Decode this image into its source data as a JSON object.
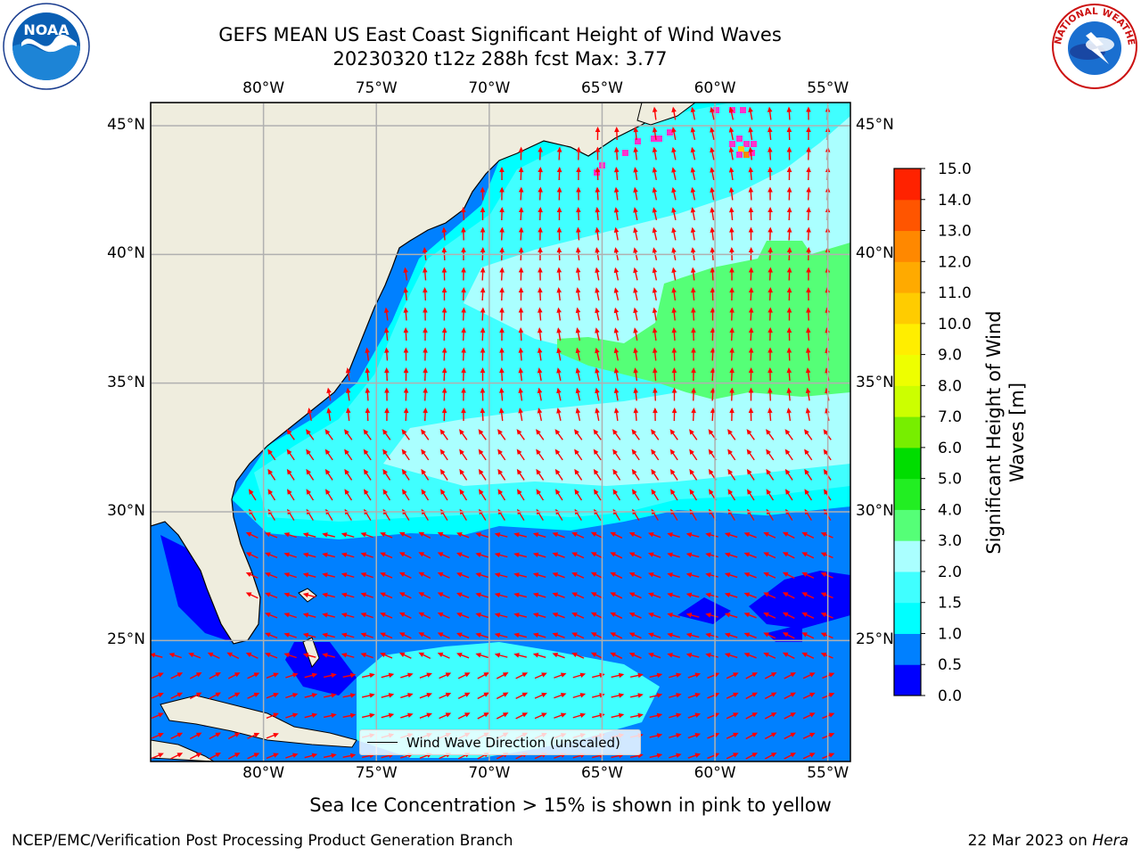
{
  "header": {
    "title_line1": "GEFS MEAN US East Coast Significant Height of Wind Waves",
    "title_line2": "20230320 t12z 288h fcst   Max: 3.77"
  },
  "logos": {
    "left": {
      "name": "noaa-logo",
      "text": "NOAA"
    },
    "right": {
      "name": "national-weather-service-logo",
      "text": "NATIONAL WEATHER SERVICE"
    }
  },
  "map": {
    "extent_lon": [
      -85,
      -54
    ],
    "extent_lat": [
      20.3,
      45.9
    ],
    "lon_ticks": [
      {
        "value": -80,
        "label": "80°W"
      },
      {
        "value": -75,
        "label": "75°W"
      },
      {
        "value": -70,
        "label": "70°W"
      },
      {
        "value": -65,
        "label": "65°W"
      },
      {
        "value": -60,
        "label": "60°W"
      },
      {
        "value": -55,
        "label": "55°W"
      }
    ],
    "lat_ticks": [
      {
        "value": 45,
        "label": "45°N"
      },
      {
        "value": 40,
        "label": "40°N"
      },
      {
        "value": 35,
        "label": "35°N"
      },
      {
        "value": 30,
        "label": "30°N"
      },
      {
        "value": 25,
        "label": "25°N"
      }
    ],
    "colors": {
      "land": "#efedde",
      "arrow": "#ff0000",
      "grid": "#b0b0b0",
      "coast": "#000000"
    },
    "legend": {
      "label": "Wind Wave Direction (unscaled)"
    }
  },
  "colorbar": {
    "label_line1": "Significant Height of Wind",
    "label_line2": "Waves [m]",
    "levels": [
      "0.0",
      "0.5",
      "1.0",
      "1.5",
      "2.0",
      "3.0",
      "4.0",
      "5.0",
      "6.0",
      "7.0",
      "8.0",
      "9.0",
      "10.0",
      "11.0",
      "12.0",
      "13.0",
      "14.0",
      "15.0"
    ],
    "colors": [
      "#0000ff",
      "#0080ff",
      "#00ffff",
      "#40ffff",
      "#aaffff",
      "#55ff77",
      "#22ee22",
      "#00dd00",
      "#77ee00",
      "#ccff00",
      "#eeff00",
      "#ffee00",
      "#ffcc00",
      "#ffaa00",
      "#ff8800",
      "#ff5500",
      "#ff2200"
    ]
  },
  "caption": "Sea Ice Concentration > 15% is shown in pink to yellow",
  "footer": {
    "left": "NCEP/EMC/Verification Post Processing Product Generation Branch",
    "right_date": "22 Mar 2023 on ",
    "right_host": "Hera"
  }
}
